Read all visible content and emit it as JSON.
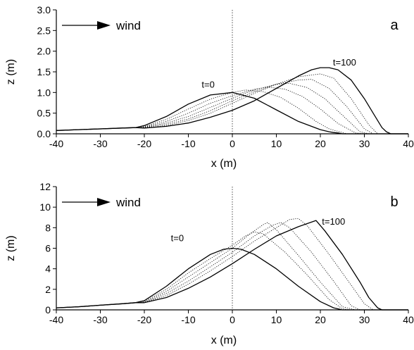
{
  "chart_data": [
    {
      "type": "line",
      "panel_label": "a",
      "xlabel": "x (m)",
      "ylabel": "z (m)",
      "xlim": [
        -40,
        40
      ],
      "ylim": [
        0,
        3.0
      ],
      "xticks": [
        "-40",
        "-30",
        "-20",
        "-10",
        "0",
        "10",
        "20",
        "30",
        "40"
      ],
      "yticks": [
        "0.0",
        "0.5",
        "1.0",
        "1.5",
        "2.0",
        "2.5",
        "3.0"
      ],
      "grid": false,
      "reference_line_x": 0,
      "wind_label": "wind",
      "annotations": [
        {
          "text": "t=0",
          "x": -5.5,
          "y": 1.12
        },
        {
          "text": "t=100",
          "x": 25.5,
          "y": 1.65
        }
      ],
      "series": [
        {
          "style": "solid",
          "x": [
            -40,
            -35,
            -30,
            -25,
            -22,
            -20,
            -15,
            -10,
            -5,
            0,
            5,
            10,
            15,
            20,
            22,
            23,
            24,
            25,
            26,
            28,
            30,
            40
          ],
          "y": [
            0.08,
            0.1,
            0.12,
            0.14,
            0.15,
            0.2,
            0.42,
            0.72,
            0.94,
            1.0,
            0.86,
            0.58,
            0.3,
            0.1,
            0.05,
            0.03,
            0.02,
            0.0,
            0.0,
            0.0,
            0.0,
            0.0
          ]
        },
        {
          "style": "dotted",
          "x": [
            -40,
            -35,
            -30,
            -25,
            -22,
            -20,
            -15,
            -10,
            -5,
            0,
            3,
            7,
            11,
            15,
            19,
            22,
            26,
            28,
            30,
            40
          ],
          "y": [
            0.08,
            0.1,
            0.12,
            0.14,
            0.15,
            0.18,
            0.35,
            0.6,
            0.84,
            1.0,
            1.06,
            1.02,
            0.88,
            0.62,
            0.3,
            0.12,
            0.0,
            0.0,
            0.0,
            0.0
          ]
        },
        {
          "style": "dotted",
          "x": [
            -40,
            -35,
            -30,
            -25,
            -22,
            -20,
            -15,
            -10,
            -5,
            0,
            5,
            8,
            12,
            16,
            20,
            24,
            28,
            30,
            40
          ],
          "y": [
            0.08,
            0.1,
            0.12,
            0.14,
            0.15,
            0.17,
            0.3,
            0.5,
            0.74,
            0.92,
            1.08,
            1.13,
            1.08,
            0.9,
            0.6,
            0.25,
            0.02,
            0.0,
            0.0
          ]
        },
        {
          "style": "dotted",
          "x": [
            -40,
            -35,
            -30,
            -25,
            -22,
            -20,
            -15,
            -10,
            -5,
            0,
            5,
            10,
            13,
            17,
            21,
            25,
            29,
            31,
            40
          ],
          "y": [
            0.08,
            0.1,
            0.12,
            0.14,
            0.15,
            0.16,
            0.26,
            0.42,
            0.64,
            0.86,
            1.06,
            1.2,
            1.22,
            1.12,
            0.85,
            0.45,
            0.05,
            0.0,
            0.0
          ]
        },
        {
          "style": "dotted",
          "x": [
            -40,
            -35,
            -30,
            -25,
            -22,
            -20,
            -15,
            -10,
            -5,
            0,
            5,
            10,
            15,
            18,
            22,
            26,
            30,
            32,
            40
          ],
          "y": [
            0.08,
            0.1,
            0.12,
            0.14,
            0.15,
            0.15,
            0.23,
            0.36,
            0.56,
            0.8,
            1.02,
            1.2,
            1.3,
            1.32,
            1.1,
            0.66,
            0.12,
            0.0,
            0.0
          ]
        },
        {
          "style": "dotted",
          "x": [
            -40,
            -35,
            -30,
            -25,
            -22,
            -20,
            -15,
            -10,
            -5,
            0,
            5,
            10,
            15,
            20,
            23,
            27,
            31,
            33,
            40
          ],
          "y": [
            0.08,
            0.1,
            0.12,
            0.14,
            0.15,
            0.14,
            0.2,
            0.32,
            0.5,
            0.74,
            0.98,
            1.2,
            1.38,
            1.45,
            1.35,
            0.85,
            0.22,
            0.0,
            0.0
          ]
        },
        {
          "style": "solid",
          "x": [
            -40,
            -35,
            -30,
            -25,
            -22,
            -20,
            -15,
            -10,
            -5,
            0,
            5,
            10,
            15,
            18,
            20,
            22,
            24,
            27,
            30,
            32,
            34,
            35,
            36,
            40
          ],
          "y": [
            0.08,
            0.1,
            0.12,
            0.14,
            0.15,
            0.14,
            0.18,
            0.26,
            0.4,
            0.57,
            0.8,
            1.1,
            1.4,
            1.55,
            1.6,
            1.6,
            1.55,
            1.3,
            0.85,
            0.5,
            0.15,
            0.05,
            0.0,
            0.0
          ]
        }
      ]
    },
    {
      "type": "line",
      "panel_label": "b",
      "xlabel": "x (m)",
      "ylabel": "z (m)",
      "xlim": [
        -40,
        40
      ],
      "ylim": [
        0,
        12
      ],
      "xticks": [
        "-40",
        "-30",
        "-20",
        "-10",
        "0",
        "10",
        "20",
        "30",
        "40"
      ],
      "yticks": [
        "0",
        "2",
        "4",
        "6",
        "8",
        "10",
        "12"
      ],
      "grid": false,
      "reference_line_x": 0,
      "wind_label": "wind",
      "annotations": [
        {
          "text": "t=0",
          "x": -12.5,
          "y": 6.7
        },
        {
          "text": "t=100",
          "x": 23,
          "y": 8.3
        }
      ],
      "series": [
        {
          "style": "solid",
          "x": [
            -40,
            -35,
            -30,
            -25,
            -22,
            -20,
            -15,
            -10,
            -5,
            -2,
            0,
            2,
            5,
            10,
            15,
            20,
            23,
            25,
            27,
            30,
            40
          ],
          "y": [
            0.2,
            0.3,
            0.45,
            0.6,
            0.7,
            0.9,
            2.3,
            4.0,
            5.4,
            5.9,
            6.0,
            5.9,
            5.4,
            4.0,
            2.3,
            0.8,
            0.2,
            0.0,
            0.0,
            0.0,
            0.0
          ]
        },
        {
          "style": "dotted",
          "x": [
            -40,
            -35,
            -30,
            -25,
            -22,
            -20,
            -15,
            -10,
            -5,
            0,
            3,
            5,
            7,
            12,
            17,
            22,
            25,
            27,
            30,
            40
          ],
          "y": [
            0.2,
            0.3,
            0.45,
            0.6,
            0.7,
            0.8,
            2.0,
            3.6,
            5.0,
            6.3,
            7.2,
            7.6,
            7.4,
            5.6,
            3.4,
            1.0,
            0.1,
            0.0,
            0.0,
            0.0
          ]
        },
        {
          "style": "dotted",
          "x": [
            -40,
            -35,
            -30,
            -25,
            -22,
            -20,
            -15,
            -10,
            -5,
            0,
            4,
            7,
            8,
            10,
            15,
            20,
            25,
            28,
            40
          ],
          "y": [
            0.2,
            0.3,
            0.45,
            0.6,
            0.7,
            0.75,
            1.8,
            3.2,
            4.6,
            6.0,
            7.4,
            8.3,
            8.5,
            7.8,
            5.3,
            2.7,
            0.3,
            0.0,
            0.0
          ]
        },
        {
          "style": "dotted",
          "x": [
            -40,
            -35,
            -30,
            -25,
            -22,
            -20,
            -15,
            -10,
            -5,
            0,
            5,
            9,
            11,
            13,
            18,
            23,
            27,
            29,
            40
          ],
          "y": [
            0.2,
            0.3,
            0.45,
            0.6,
            0.7,
            0.72,
            1.6,
            2.8,
            4.2,
            5.6,
            7.2,
            8.2,
            8.5,
            8.0,
            5.6,
            2.8,
            0.4,
            0.0,
            0.0
          ]
        },
        {
          "style": "dotted",
          "x": [
            -40,
            -35,
            -30,
            -25,
            -22,
            -20,
            -15,
            -10,
            -5,
            0,
            5,
            10,
            13,
            15,
            17,
            22,
            27,
            30,
            32,
            40
          ],
          "y": [
            0.2,
            0.3,
            0.45,
            0.6,
            0.7,
            0.7,
            1.4,
            2.5,
            3.8,
            5.2,
            6.7,
            8.0,
            8.8,
            8.9,
            8.2,
            5.4,
            2.4,
            0.6,
            0.0,
            0.0
          ]
        },
        {
          "style": "solid",
          "x": [
            -40,
            -35,
            -30,
            -25,
            -22,
            -20,
            -15,
            -10,
            -5,
            0,
            5,
            10,
            15,
            17,
            19,
            21,
            25,
            29,
            31,
            33,
            34,
            40
          ],
          "y": [
            0.2,
            0.3,
            0.45,
            0.6,
            0.7,
            0.7,
            1.2,
            2.1,
            3.2,
            4.5,
            5.9,
            7.2,
            8.1,
            8.4,
            8.7,
            7.7,
            5.4,
            2.7,
            1.2,
            0.2,
            0.0,
            0.0
          ]
        }
      ]
    }
  ]
}
